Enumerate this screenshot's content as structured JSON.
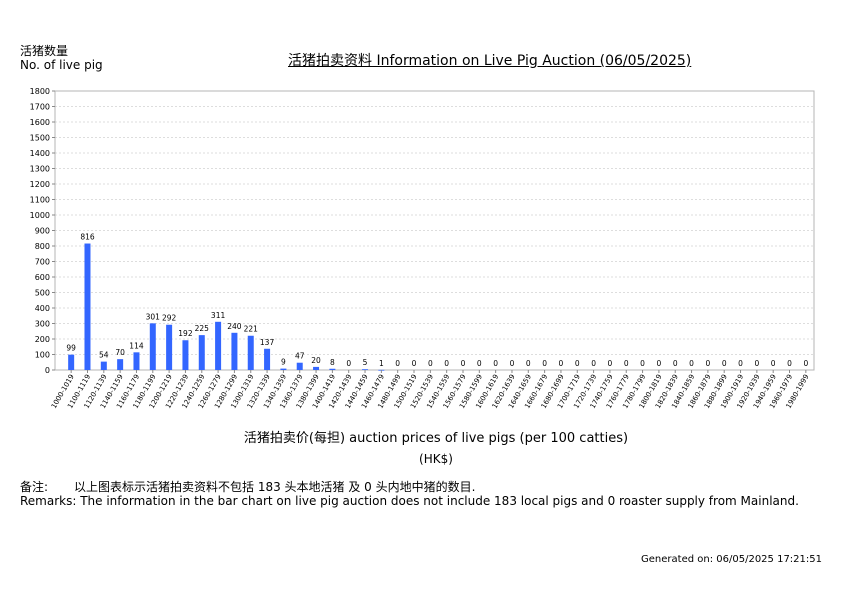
{
  "header": {
    "ylabel_cn": "活猪数量",
    "ylabel_en": "No. of live pig",
    "title": "活猪拍卖资料 Information on Live Pig Auction (06/05/2025)"
  },
  "chart_data": {
    "type": "bar",
    "title": "活猪拍卖资料 Information on Live Pig Auction (06/05/2025)",
    "ylabel": "No. of live pig",
    "xlabel": "活猪拍卖价(每担) auction prices of live pigs (per 100 catties)",
    "unit": "(HK$)",
    "ylim": [
      0,
      1800
    ],
    "yticks": [
      0,
      100,
      200,
      300,
      400,
      500,
      600,
      700,
      800,
      900,
      1000,
      1100,
      1200,
      1300,
      1400,
      1500,
      1600,
      1700,
      1800
    ],
    "grid": true,
    "bar_color": "#3366ff",
    "categories": [
      "1000-1019",
      "1100-1119",
      "1120-1139",
      "1140-1159",
      "1160-1179",
      "1180-1199",
      "1200-1219",
      "1220-1239",
      "1240-1259",
      "1260-1279",
      "1280-1299",
      "1300-1319",
      "1320-1339",
      "1340-1359",
      "1360-1379",
      "1380-1399",
      "1400-1419",
      "1420-1439",
      "1440-1459",
      "1460-1479",
      "1480-1499",
      "1500-1519",
      "1520-1539",
      "1540-1559",
      "1560-1579",
      "1580-1599",
      "1600-1619",
      "1620-1639",
      "1640-1659",
      "1660-1679",
      "1680-1699",
      "1700-1719",
      "1720-1739",
      "1740-1759",
      "1760-1779",
      "1780-1799",
      "1800-1819",
      "1820-1839",
      "1840-1859",
      "1860-1879",
      "1880-1899",
      "1900-1919",
      "1920-1939",
      "1940-1959",
      "1960-1979",
      "1980-1999"
    ],
    "values": [
      99,
      816,
      54,
      70,
      114,
      301,
      292,
      192,
      225,
      311,
      240,
      221,
      137,
      9,
      47,
      20,
      8,
      0,
      5,
      1,
      0,
      0,
      0,
      0,
      0,
      0,
      0,
      0,
      0,
      0,
      0,
      0,
      0,
      0,
      0,
      0,
      0,
      0,
      0,
      0,
      0,
      0,
      0,
      0,
      0,
      0
    ]
  },
  "footer": {
    "unit": "(HK$)",
    "xtitle": "活猪拍卖价(每担) auction prices of live pigs (per 100 catties)",
    "remarks_cn_label": "备注:",
    "remarks_cn": "以上图表标示活猪拍卖资料不包括 183 头本地活猪 及 0 头内地中猪的数目.",
    "remarks_en": "Remarks: The information in the bar chart on live pig auction does not include 183 local pigs and 0 roaster supply from Mainland.",
    "generated": "Generated on: 06/05/2025 17:21:51"
  }
}
